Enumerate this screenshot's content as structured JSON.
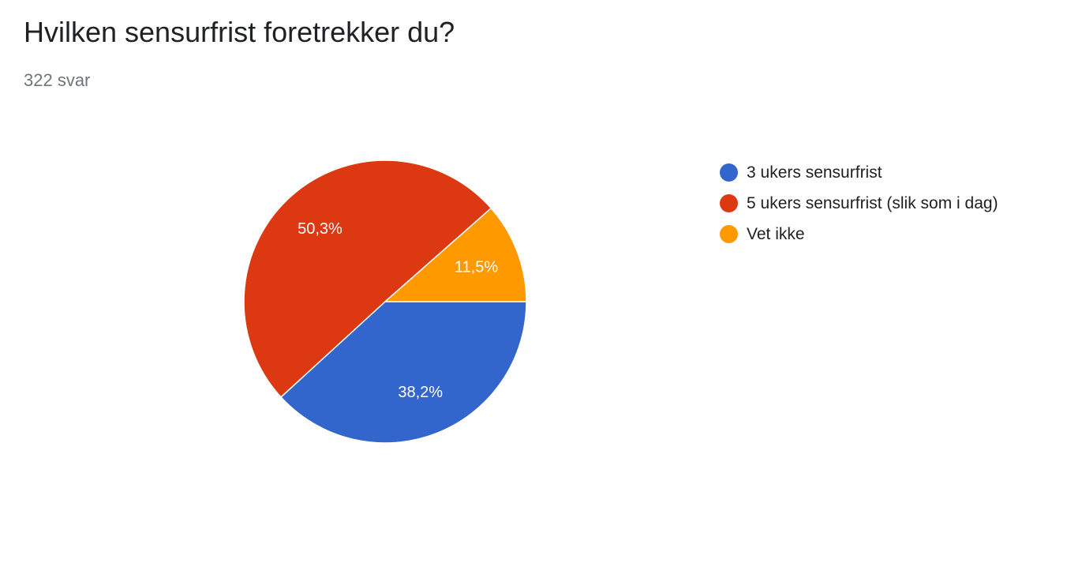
{
  "title": "Hvilken sensurfrist foretrekker du?",
  "subtitle": "322 svar",
  "chart_data": {
    "type": "pie",
    "categories": [
      "3 ukers sensurfrist",
      "5 ukers sensurfrist (slik som i dag)",
      "Vet ikke"
    ],
    "values": [
      38.2,
      50.3,
      11.5
    ],
    "data_labels": [
      "38,2%",
      "50,3%",
      "11,5%"
    ],
    "colors": [
      "#3366cc",
      "#dc3912",
      "#ff9900"
    ],
    "legend_position": "right"
  }
}
